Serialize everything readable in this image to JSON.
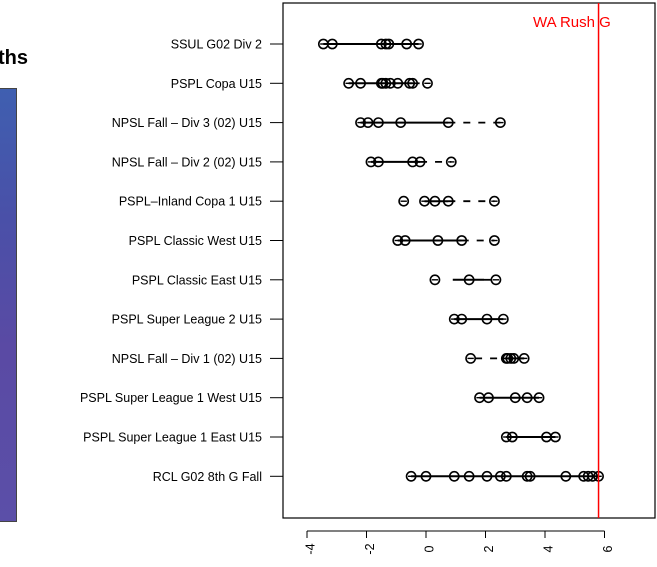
{
  "partial_panel": {
    "title_fragment": "ths"
  },
  "chart_data": {
    "type": "scatter",
    "title": "",
    "xlabel": "",
    "ylabel": "",
    "xlim": [
      -4.7,
      7.0
    ],
    "x_ticks": [
      -4,
      -2,
      0,
      2,
      4,
      6
    ],
    "x_tick_labels": [
      "-4",
      "-2",
      "0",
      "2",
      "4",
      "6"
    ],
    "reference_line": {
      "label": "WA Rush G",
      "x": 5.8,
      "color": "#ff0000"
    },
    "categories": [
      "SSUL G02 Div 2",
      "PSPL Copa U15",
      "NPSL Fall – Div 3 (02) U15",
      "NPSL Fall – Div 2 (02) U15",
      "PSPL–Inland Copa 1 U15",
      "PSPL Classic West U15",
      "PSPL Classic East U15",
      "PSPL Super League 2 U15",
      "NPSL Fall – Div 1 (02) U15",
      "PSPL Super League 1 West U15",
      "PSPL Super League 1 East U15",
      "RCL G02 8th G Fall"
    ],
    "rows": [
      {
        "points": [
          -3.45,
          -3.15,
          -1.5,
          -1.35,
          -1.25,
          -0.65,
          -0.25
        ],
        "solid": [
          -3.45,
          -0.25
        ],
        "dashed": []
      },
      {
        "points": [
          -2.6,
          -2.2,
          -1.5,
          -1.45,
          -1.35,
          -1.2,
          -0.95,
          -0.55,
          -0.45,
          0.05
        ],
        "solid": [
          -2.6,
          -0.45
        ],
        "dashed": [
          -0.45,
          0.05
        ]
      },
      {
        "points": [
          -2.2,
          -1.95,
          -1.6,
          -0.85,
          0.75,
          2.5
        ],
        "solid": [
          -2.2,
          0.75
        ],
        "dashed": [
          0.75,
          2.5
        ]
      },
      {
        "points": [
          -1.85,
          -1.6,
          -0.45,
          -0.2,
          0.85
        ],
        "solid": [
          -1.85,
          -0.2
        ],
        "dashed": [
          -0.2,
          0.85
        ]
      },
      {
        "points": [
          -0.75,
          -0.05,
          0.3,
          0.75,
          2.3
        ],
        "solid": [
          -0.05,
          0.75
        ],
        "dashed": [
          0.75,
          2.3
        ]
      },
      {
        "points": [
          -0.95,
          -0.7,
          0.4,
          1.2,
          2.3
        ],
        "solid": [
          -0.95,
          1.2
        ],
        "dashed": [
          1.2,
          2.3
        ]
      },
      {
        "points": [
          0.3,
          1.45,
          2.35
        ],
        "solid": [
          0.9,
          1.95
        ],
        "dashed": [
          1.95,
          2.35
        ]
      },
      {
        "points": [
          0.95,
          1.2,
          2.05,
          2.6
        ],
        "solid": [
          0.95,
          2.6
        ],
        "dashed": []
      },
      {
        "points": [
          1.5,
          2.7,
          2.75,
          2.85,
          2.95,
          3.3
        ],
        "solid": [
          2.7,
          3.3
        ],
        "dashed": [
          1.65,
          2.7
        ]
      },
      {
        "points": [
          1.8,
          2.1,
          3.0,
          3.4,
          3.8
        ],
        "solid": [
          1.8,
          3.8
        ],
        "dashed": []
      },
      {
        "points": [
          2.7,
          2.9,
          4.05,
          4.35
        ],
        "solid": [
          2.7,
          4.35
        ],
        "dashed": []
      },
      {
        "points": [
          -0.5,
          0.0,
          0.95,
          1.45,
          2.05,
          2.5,
          2.7,
          3.4,
          3.5,
          4.7,
          5.3,
          5.45,
          5.6,
          5.8
        ],
        "solid": [
          -0.5,
          5.8
        ],
        "dashed": []
      }
    ]
  }
}
